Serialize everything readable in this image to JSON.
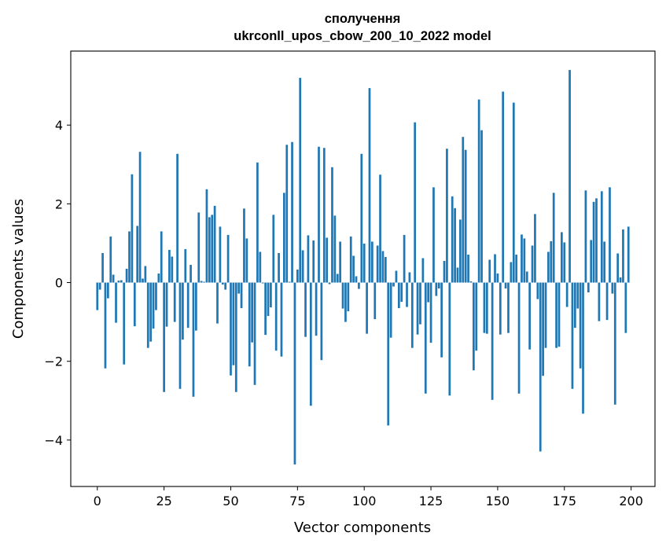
{
  "chart_data": {
    "type": "bar",
    "title": "сполучення",
    "subtitle": "ukrconll_upos_cbow_200_10_2022 model",
    "xlabel": "Vector components",
    "ylabel": "Components values",
    "xlim": [
      -9.95,
      208.95
    ],
    "ylim": [
      -5.18,
      5.88
    ],
    "xticks": [
      0,
      25,
      50,
      75,
      100,
      125,
      150,
      175,
      200
    ],
    "yticks": [
      -4,
      -2,
      0,
      2,
      4
    ],
    "xtick_labels": [
      "0",
      "25",
      "50",
      "75",
      "100",
      "125",
      "150",
      "175",
      "200"
    ],
    "ytick_labels": [
      "−4",
      "−2",
      "0",
      "2",
      "4"
    ],
    "grid": false,
    "bar_color": "#1f77b4",
    "x": [
      0,
      1,
      2,
      3,
      4,
      5,
      6,
      7,
      8,
      9,
      10,
      11,
      12,
      13,
      14,
      15,
      16,
      17,
      18,
      19,
      20,
      21,
      22,
      23,
      24,
      25,
      26,
      27,
      28,
      29,
      30,
      31,
      32,
      33,
      34,
      35,
      36,
      37,
      38,
      39,
      40,
      41,
      42,
      43,
      44,
      45,
      46,
      47,
      48,
      49,
      50,
      51,
      52,
      53,
      54,
      55,
      56,
      57,
      58,
      59,
      60,
      61,
      62,
      63,
      64,
      65,
      66,
      67,
      68,
      69,
      70,
      71,
      72,
      73,
      74,
      75,
      76,
      77,
      78,
      79,
      80,
      81,
      82,
      83,
      84,
      85,
      86,
      87,
      88,
      89,
      90,
      91,
      92,
      93,
      94,
      95,
      96,
      97,
      98,
      99,
      100,
      101,
      102,
      103,
      104,
      105,
      106,
      107,
      108,
      109,
      110,
      111,
      112,
      113,
      114,
      115,
      116,
      117,
      118,
      119,
      120,
      121,
      122,
      123,
      124,
      125,
      126,
      127,
      128,
      129,
      130,
      131,
      132,
      133,
      134,
      135,
      136,
      137,
      138,
      139,
      140,
      141,
      142,
      143,
      144,
      145,
      146,
      147,
      148,
      149,
      150,
      151,
      152,
      153,
      154,
      155,
      156,
      157,
      158,
      159,
      160,
      161,
      162,
      163,
      164,
      165,
      166,
      167,
      168,
      169,
      170,
      171,
      172,
      173,
      174,
      175,
      176,
      177,
      178,
      179,
      180,
      181,
      182,
      183,
      184,
      185,
      186,
      187,
      188,
      189,
      190,
      191,
      192,
      193,
      194,
      195,
      196,
      197,
      198,
      199
    ],
    "values": [
      -0.7,
      -0.18,
      0.75,
      -2.18,
      -0.4,
      1.17,
      0.2,
      -1.02,
      0.05,
      0.06,
      -2.08,
      0.35,
      1.3,
      2.75,
      -1.11,
      1.44,
      3.32,
      0.1,
      0.42,
      -1.66,
      -1.5,
      -1.17,
      -0.7,
      0.23,
      1.3,
      -2.78,
      -1.12,
      0.83,
      0.66,
      -1.0,
      3.27,
      -2.7,
      -1.45,
      0.85,
      -1.15,
      0.45,
      -2.9,
      -1.22,
      1.78,
      0.04,
      0.02,
      2.37,
      1.66,
      1.72,
      1.95,
      -1.04,
      1.42,
      -0.05,
      -0.18,
      1.21,
      -2.36,
      -2.1,
      -2.78,
      -0.28,
      -0.65,
      1.88,
      1.12,
      -2.13,
      -1.52,
      -2.6,
      3.05,
      0.78,
      -0.02,
      -1.33,
      -0.85,
      -0.63,
      1.72,
      -1.73,
      0.75,
      -1.88,
      2.28,
      3.5,
      0.02,
      3.57,
      -4.62,
      0.33,
      5.2,
      0.82,
      -1.38,
      1.2,
      -3.13,
      1.07,
      -1.35,
      3.45,
      -1.97,
      3.42,
      1.14,
      -0.04,
      2.93,
      1.7,
      0.22,
      1.04,
      -0.66,
      -1.0,
      -0.73,
      1.17,
      0.68,
      0.16,
      -0.16,
      3.27,
      0.99,
      -1.3,
      4.94,
      1.04,
      -0.93,
      0.94,
      2.74,
      0.8,
      0.65,
      -3.63,
      -1.4,
      -0.1,
      0.3,
      -0.65,
      -0.49,
      1.21,
      -0.62,
      0.26,
      -1.66,
      4.07,
      -1.32,
      -1.06,
      0.62,
      -2.82,
      -0.5,
      -1.53,
      2.42,
      -0.34,
      -0.15,
      -1.9,
      0.55,
      3.4,
      -2.87,
      2.19,
      1.89,
      0.38,
      1.6,
      3.7,
      3.37,
      0.71,
      0.03,
      -2.23,
      -1.73,
      4.65,
      3.87,
      -1.28,
      -1.3,
      0.58,
      -2.98,
      0.72,
      0.23,
      -1.32,
      4.85,
      -0.15,
      -1.28,
      0.52,
      4.57,
      0.71,
      -2.82,
      1.22,
      1.12,
      0.28,
      -1.7,
      0.94,
      1.74,
      -0.42,
      -4.29,
      -2.37,
      -1.66,
      0.78,
      1.05,
      2.28,
      -1.66,
      -1.63,
      1.28,
      1.02,
      -0.62,
      5.4,
      -2.7,
      -1.15,
      -0.66,
      -2.18,
      -3.33,
      2.34,
      -0.25,
      1.08,
      2.05,
      2.14,
      -0.98,
      2.32,
      1.04,
      -0.95,
      2.42,
      -0.28,
      -3.1,
      0.74,
      0.13,
      1.35,
      -1.28,
      1.42
    ]
  }
}
